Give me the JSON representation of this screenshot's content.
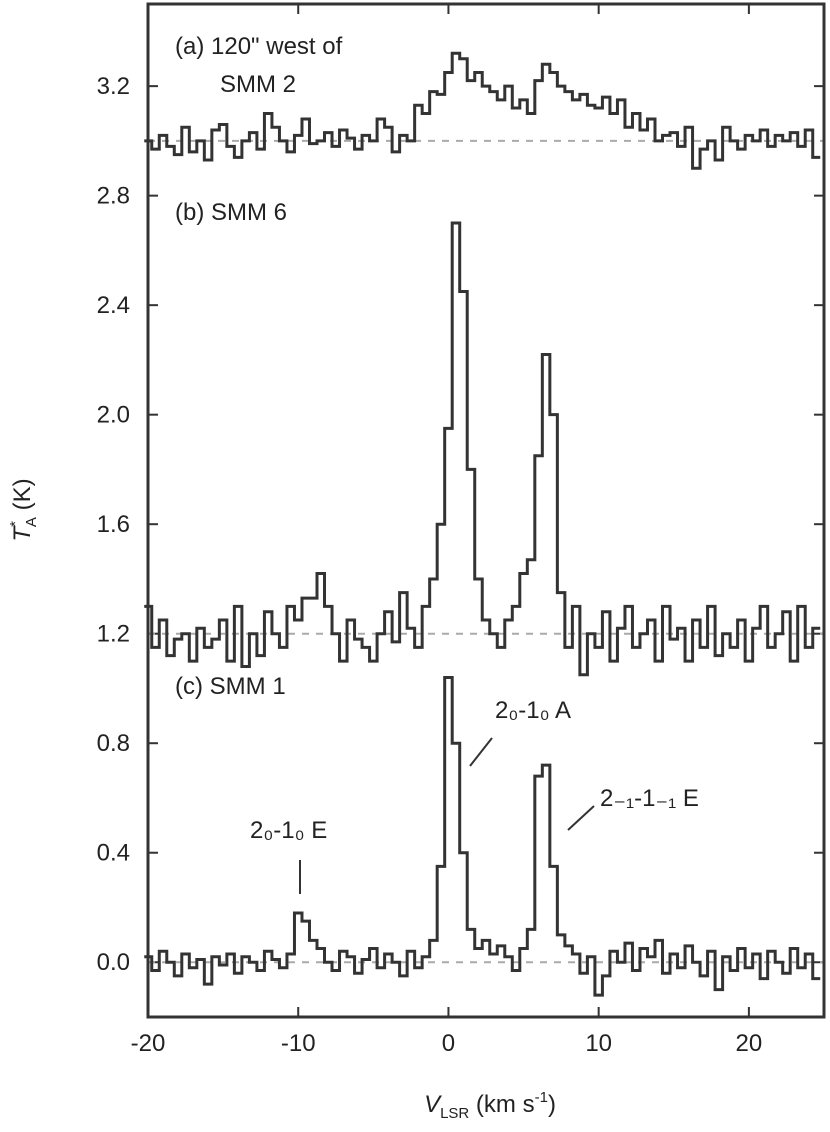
{
  "chart_data": {
    "type": "step",
    "xlabel": {
      "main": "V",
      "sub": "LSR",
      "rest": " (km s",
      "sup": "-1",
      "end": ")"
    },
    "ylabel": {
      "main": "T",
      "sup": "*",
      "sub": "A",
      "rest": " (K)"
    },
    "xlim": [
      -20,
      25
    ],
    "ylim": [
      -0.2,
      3.5
    ],
    "xticks": [
      -20,
      -10,
      0,
      10,
      20
    ],
    "yticks": [
      {
        "value": 0,
        "label": "0.0"
      },
      0.4,
      0.8,
      1.2,
      1.6,
      {
        "value": 2,
        "label": "2.0"
      },
      2.4,
      2.8,
      3.2
    ],
    "x": [
      -20,
      -19.5,
      -19,
      -18.5,
      -18,
      -17.5,
      -17,
      -16.5,
      -16,
      -15.5,
      -15,
      -14.5,
      -14,
      -13.5,
      -13,
      -12.5,
      -12,
      -11.5,
      -11,
      -10.5,
      -10,
      -9.5,
      -9,
      -8.5,
      -8,
      -7.5,
      -7,
      -6.5,
      -6,
      -5.5,
      -5,
      -4.5,
      -4,
      -3.5,
      -3,
      -2.5,
      -2,
      -1.5,
      -1,
      -0.5,
      0,
      0.5,
      1,
      1.5,
      2,
      2.5,
      3,
      3.5,
      4,
      4.5,
      5,
      5.5,
      6,
      6.5,
      7,
      7.5,
      8,
      8.5,
      9,
      9.5,
      10,
      10.5,
      11,
      11.5,
      12,
      12.5,
      13,
      13.5,
      14,
      14.5,
      15,
      15.5,
      16,
      16.5,
      17,
      17.5,
      18,
      18.5,
      19,
      19.5,
      20,
      20.5,
      21,
      21.5,
      22,
      22.5,
      23,
      23.5,
      24,
      24.5
    ],
    "series": [
      {
        "name": "(a) 120\" west of",
        "name2": "SMM 2",
        "color": "#333333",
        "baseline": 3.0,
        "values": [
          3.0,
          2.97,
          3.02,
          2.98,
          2.95,
          3.05,
          2.96,
          3.0,
          2.93,
          3.04,
          3.06,
          2.98,
          2.94,
          3.0,
          3.03,
          2.97,
          3.1,
          3.05,
          3.0,
          2.96,
          3.02,
          3.08,
          2.99,
          3.0,
          3.03,
          2.98,
          3.04,
          3.01,
          2.97,
          3.02,
          3.0,
          3.08,
          3.05,
          2.96,
          3.02,
          3.0,
          3.13,
          3.1,
          3.18,
          3.17,
          3.25,
          3.32,
          3.3,
          3.22,
          3.25,
          3.2,
          3.18,
          3.15,
          3.2,
          3.12,
          3.15,
          3.1,
          3.22,
          3.28,
          3.25,
          3.2,
          3.18,
          3.15,
          3.17,
          3.13,
          3.12,
          3.16,
          3.1,
          3.15,
          3.05,
          3.1,
          3.04,
          3.08,
          3.0,
          3.02,
          3.03,
          2.98,
          3.05,
          2.9,
          2.97,
          3.0,
          2.93,
          3.05,
          3.0,
          2.97,
          3.02,
          3.0,
          3.04,
          2.98,
          3.02,
          3.0,
          3.03,
          2.98,
          3.04,
          2.94
        ]
      },
      {
        "name": "(b) SMM 6",
        "color": "#333333",
        "baseline": 1.2,
        "values": [
          1.3,
          1.15,
          1.25,
          1.12,
          1.18,
          1.2,
          1.1,
          1.22,
          1.15,
          1.18,
          1.25,
          1.1,
          1.3,
          1.08,
          1.2,
          1.12,
          1.28,
          1.2,
          1.15,
          1.3,
          1.25,
          1.33,
          1.33,
          1.42,
          1.3,
          1.2,
          1.1,
          1.25,
          1.18,
          1.15,
          1.1,
          1.2,
          1.28,
          1.17,
          1.35,
          1.22,
          1.15,
          1.3,
          1.4,
          1.6,
          1.95,
          2.7,
          2.45,
          1.8,
          1.4,
          1.25,
          1.2,
          1.15,
          1.25,
          1.3,
          1.42,
          1.47,
          1.85,
          2.22,
          2.0,
          1.35,
          1.15,
          1.3,
          1.05,
          1.2,
          1.15,
          1.28,
          1.1,
          1.22,
          1.3,
          1.15,
          1.2,
          1.25,
          1.1,
          1.3,
          1.18,
          1.22,
          1.1,
          1.25,
          1.15,
          1.3,
          1.12,
          1.2,
          1.15,
          1.25,
          1.1,
          1.22,
          1.3,
          1.15,
          1.2,
          1.28,
          1.1,
          1.3,
          1.15,
          1.22
        ]
      },
      {
        "name": "(c) SMM 1",
        "color": "#333333",
        "baseline": 0.0,
        "values": [
          0.02,
          -0.03,
          0.04,
          0.0,
          -0.05,
          0.03,
          -0.02,
          0.01,
          -0.08,
          0.02,
          -0.01,
          0.03,
          -0.04,
          0.02,
          0.0,
          -0.03,
          0.04,
          0.01,
          -0.02,
          0.03,
          0.18,
          0.15,
          0.08,
          0.05,
          0.0,
          -0.03,
          0.04,
          0.02,
          -0.04,
          0.01,
          0.05,
          -0.02,
          0.03,
          0.0,
          -0.05,
          0.04,
          -0.02,
          0.02,
          0.08,
          0.35,
          1.04,
          0.8,
          0.4,
          0.12,
          0.05,
          0.08,
          0.03,
          0.06,
          0.02,
          -0.03,
          0.05,
          0.12,
          0.68,
          0.72,
          0.35,
          0.1,
          0.06,
          0.03,
          -0.04,
          0.02,
          -0.12,
          -0.05,
          0.04,
          0.0,
          0.07,
          -0.03,
          0.05,
          0.02,
          0.08,
          -0.04,
          0.03,
          -0.02,
          0.06,
          0.0,
          -0.05,
          0.04,
          -0.1,
          0.02,
          -0.03,
          0.05,
          -0.02,
          0.03,
          -0.06,
          0.04,
          0.0,
          -0.04,
          0.05,
          -0.02,
          0.03,
          -0.06
        ]
      }
    ],
    "annotations": [
      "2₀-1₀ A",
      "2₋₁-1₋₁ E",
      "2₀-1₀ E"
    ],
    "baseline_color": "#aaaaaa"
  }
}
